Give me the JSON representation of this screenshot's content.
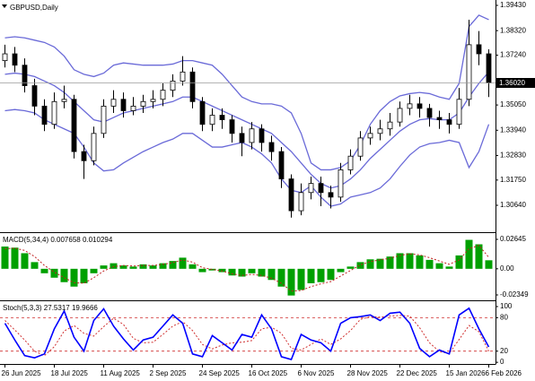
{
  "chart_data": [
    {
      "type": "candlestick",
      "title": "GBPUSD,Daily",
      "categories": [
        "26 Jun 2025",
        null,
        null,
        null,
        null,
        "18 Jul 2025",
        null,
        null,
        null,
        null,
        "11 Aug 2025",
        null,
        null,
        null,
        null,
        "2 Sep 2025",
        null,
        null,
        null,
        null,
        "24 Sep 2025",
        null,
        null,
        null,
        null,
        "16 Oct 2025",
        null,
        null,
        null,
        null,
        "6 Nov 2025",
        null,
        null,
        null,
        null,
        "28 Nov 2025",
        null,
        null,
        null,
        null,
        "22 Dec 2025",
        null,
        null,
        null,
        null,
        "15 Jan 2026",
        null,
        null,
        null,
        "6 Feb 2026"
      ],
      "open": [
        1.37,
        1.373,
        1.368,
        1.359,
        1.35,
        1.342,
        1.352,
        1.353,
        1.33,
        1.326,
        1.338,
        1.35,
        1.353,
        1.348,
        1.35,
        1.352,
        1.353,
        1.357,
        1.361,
        1.365,
        1.352,
        1.342,
        1.346,
        1.344,
        1.338,
        1.334,
        1.34,
        1.334,
        1.33,
        1.318,
        1.304,
        1.312,
        1.316,
        1.312,
        1.31,
        1.322,
        1.328,
        1.336,
        1.338,
        1.34,
        1.343,
        1.349,
        1.351,
        1.349,
        1.345,
        1.344,
        1.342,
        1.353,
        1.377,
        1.373
      ],
      "high": [
        1.377,
        1.376,
        1.371,
        1.362,
        1.353,
        1.356,
        1.359,
        1.355,
        1.333,
        1.341,
        1.353,
        1.357,
        1.356,
        1.354,
        1.355,
        1.357,
        1.36,
        1.364,
        1.372,
        1.367,
        1.354,
        1.349,
        1.349,
        1.346,
        1.341,
        1.343,
        1.342,
        1.337,
        1.332,
        1.32,
        1.316,
        1.319,
        1.319,
        1.315,
        1.325,
        1.331,
        1.339,
        1.341,
        1.344,
        1.347,
        1.352,
        1.355,
        1.354,
        1.351,
        1.348,
        1.347,
        1.358,
        1.388,
        1.383,
        1.375
      ],
      "low": [
        1.367,
        1.365,
        1.356,
        1.346,
        1.339,
        1.34,
        1.349,
        1.327,
        1.318,
        1.324,
        1.336,
        1.347,
        1.345,
        1.346,
        1.347,
        1.349,
        1.35,
        1.354,
        1.359,
        1.349,
        1.339,
        1.339,
        1.34,
        1.334,
        1.328,
        1.331,
        1.33,
        1.326,
        1.314,
        1.301,
        1.302,
        1.309,
        1.306,
        1.305,
        1.308,
        1.32,
        1.326,
        1.333,
        1.335,
        1.337,
        1.341,
        1.346,
        1.345,
        1.341,
        1.34,
        1.338,
        1.34,
        1.35,
        1.368,
        1.354
      ],
      "close": [
        1.373,
        1.368,
        1.359,
        1.35,
        1.342,
        1.352,
        1.353,
        1.33,
        1.326,
        1.338,
        1.35,
        1.353,
        1.348,
        1.35,
        1.352,
        1.353,
        1.357,
        1.361,
        1.365,
        1.352,
        1.342,
        1.346,
        1.344,
        1.338,
        1.334,
        1.34,
        1.334,
        1.33,
        1.318,
        1.304,
        1.312,
        1.316,
        1.312,
        1.31,
        1.322,
        1.328,
        1.336,
        1.338,
        1.34,
        1.343,
        1.349,
        1.351,
        1.349,
        1.345,
        1.344,
        1.342,
        1.353,
        1.377,
        1.373,
        1.3602
      ],
      "bands": {
        "upper": [
          1.38,
          1.3805,
          1.38,
          1.379,
          1.378,
          1.376,
          1.372,
          1.366,
          1.364,
          1.363,
          1.3645,
          1.368,
          1.369,
          1.3685,
          1.368,
          1.368,
          1.368,
          1.3685,
          1.37,
          1.37,
          1.369,
          1.368,
          1.364,
          1.359,
          1.354,
          1.352,
          1.351,
          1.351,
          1.35,
          1.347,
          1.338,
          1.325,
          1.322,
          1.322,
          1.323,
          1.326,
          1.333,
          1.342,
          1.348,
          1.352,
          1.3545,
          1.3555,
          1.356,
          1.3555,
          1.354,
          1.353,
          1.36,
          1.385,
          1.39,
          1.388
        ],
        "middle": [
          1.364,
          1.3645,
          1.364,
          1.363,
          1.361,
          1.359,
          1.356,
          1.352,
          1.348,
          1.344,
          1.343,
          1.345,
          1.347,
          1.348,
          1.349,
          1.35,
          1.351,
          1.352,
          1.354,
          1.354,
          1.352,
          1.35,
          1.348,
          1.346,
          1.344,
          1.342,
          1.34,
          1.338,
          1.334,
          1.33,
          1.325,
          1.32,
          1.316,
          1.314,
          1.315,
          1.318,
          1.322,
          1.327,
          1.331,
          1.335,
          1.339,
          1.342,
          1.344,
          1.3445,
          1.344,
          1.344,
          1.347,
          1.354,
          1.36,
          1.365
        ],
        "lower": [
          1.348,
          1.3485,
          1.348,
          1.347,
          1.344,
          1.342,
          1.34,
          1.338,
          1.332,
          1.325,
          1.3215,
          1.322,
          1.325,
          1.3275,
          1.33,
          1.332,
          1.334,
          1.3355,
          1.338,
          1.338,
          1.335,
          1.332,
          1.332,
          1.333,
          1.334,
          1.332,
          1.329,
          1.325,
          1.318,
          1.313,
          1.312,
          1.315,
          1.31,
          1.306,
          1.307,
          1.31,
          1.311,
          1.312,
          1.314,
          1.318,
          1.3235,
          1.3285,
          1.332,
          1.3335,
          1.334,
          1.335,
          1.334,
          1.323,
          1.33,
          1.342
        ]
      },
      "band_color": "#6a6ad8",
      "bull_color": "#ffffff",
      "bear_color": "#000000",
      "current_price": {
        "value": 1.3602,
        "label": "1.36020"
      },
      "ylim": [
        1.29497,
        1.39666
      ],
      "yticks": [
        {
          "value": 1.3943,
          "label": "1.39430"
        },
        {
          "value": 1.3832,
          "label": "1.38320"
        },
        {
          "value": 1.3724,
          "label": "1.37240"
        },
        {
          "value": 1.3505,
          "label": "1.35050"
        },
        {
          "value": 1.3394,
          "label": "1.33940"
        },
        {
          "value": 1.3283,
          "label": "1.32830"
        },
        {
          "value": 1.3175,
          "label": "1.31750"
        },
        {
          "value": 1.3064,
          "label": "1.30640"
        }
      ]
    },
    {
      "type": "macd",
      "title": "MACD(5,34,4) 0.007658 0.010294",
      "values": [
        0.02,
        0.019,
        0.014,
        0.006,
        -0.004,
        -0.008,
        -0.012,
        -0.016,
        -0.013,
        -0.004,
        0.003,
        0.005,
        0.003,
        0.002,
        0.004,
        0.003,
        0.005,
        0.007,
        0.01,
        0.004,
        -0.003,
        -0.0015,
        -0.003,
        -0.006,
        -0.007,
        -0.004,
        -0.007,
        -0.01,
        -0.016,
        -0.024,
        -0.019,
        -0.013,
        -0.012,
        -0.01,
        -0.003,
        0.002,
        0.006,
        0.0085,
        0.009,
        0.011,
        0.014,
        0.014,
        0.012,
        0.008,
        0.005,
        0.002,
        0.012,
        0.026,
        0.022,
        0.007658
      ],
      "signal": [
        0.018,
        0.0185,
        0.0165,
        0.011,
        0.003,
        -0.003,
        -0.008,
        -0.0125,
        -0.013,
        -0.008,
        -0.002,
        0.002,
        0.003,
        0.0025,
        0.003,
        0.003,
        0.004,
        0.0055,
        0.008,
        0.006,
        0.001,
        -0.0005,
        -0.002,
        -0.0045,
        -0.006,
        -0.005,
        -0.006,
        -0.0085,
        -0.013,
        -0.02,
        -0.0195,
        -0.016,
        -0.0135,
        -0.0115,
        -0.0065,
        -0.0015,
        0.0035,
        0.0065,
        0.008,
        0.0095,
        0.012,
        0.0135,
        0.0125,
        0.01,
        0.007,
        0.004,
        0.008,
        0.018,
        0.021,
        0.010294
      ],
      "color": "#00a000",
      "signal_color": "#c02020",
      "ylim": [
        -0.02671,
        0.03128
      ],
      "yticks": [
        0.02645,
        {
          "value": 0,
          "label": "0.00"
        },
        -0.02349
      ]
    },
    {
      "type": "stochastic",
      "title": "Stoch(5,3,3) 27.5317 19.9666",
      "main": [
        70,
        40,
        12,
        8,
        15,
        60,
        92,
        45,
        20,
        75,
        96,
        65,
        42,
        22,
        40,
        45,
        65,
        85,
        70,
        15,
        10,
        48,
        35,
        22,
        50,
        45,
        85,
        60,
        10,
        5,
        50,
        40,
        35,
        20,
        70,
        80,
        82,
        85,
        75,
        88,
        90,
        70,
        25,
        10,
        22,
        15,
        85,
        97,
        60,
        27.5317
      ],
      "signal": [
        75,
        58,
        40,
        20,
        12,
        28,
        56,
        66,
        52,
        47,
        64,
        79,
        68,
        43,
        35,
        36,
        50,
        65,
        73,
        57,
        32,
        24,
        31,
        35,
        36,
        39,
        60,
        63,
        52,
        25,
        22,
        32,
        42,
        32,
        42,
        57,
        77,
        82,
        81,
        83,
        84,
        83,
        62,
        35,
        19,
        16,
        41,
        66,
        55,
        19.9666
      ],
      "main_color": "#0000ff",
      "signal_color": "#d03030",
      "levels": [
        20,
        80
      ],
      "ylim": [
        -3,
        108
      ],
      "yticks": [
        100,
        80,
        20,
        0
      ]
    }
  ]
}
